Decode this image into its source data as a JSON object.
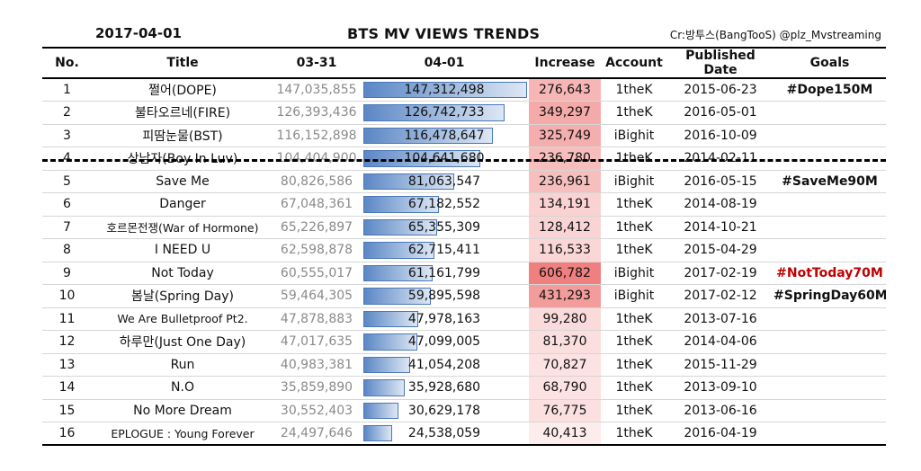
{
  "header": {
    "date": "2017-04-01",
    "title": "BTS MV VIEWS TRENDS",
    "credit": "Cr:방투스(BangTooS) @plz_Mvstreaming"
  },
  "columns": [
    "No.",
    "Title",
    "03-31",
    "04-01",
    "Increase",
    "Account",
    "Published Date",
    "Goals"
  ],
  "colors": {
    "bar": "#5b87c5",
    "bar_border": "#4a78b8",
    "increase_high": "#f08080",
    "increase_low": "#fdeaea",
    "goal_red": "#c00000"
  },
  "chart_data": {
    "type": "table",
    "rows": [
      {
        "no": "1",
        "title": "쩔어(DOPE)",
        "prev": "147,035,855",
        "cur": "147,312,498",
        "inc": "276,643",
        "account": "1theK",
        "date": "2015-06-23",
        "goal": "#Dope150M",
        "cur_value": 147312498,
        "inc_value": 276643
      },
      {
        "no": "2",
        "title": "불타오르네(FIRE)",
        "prev": "126,393,436",
        "cur": "126,742,733",
        "inc": "349,297",
        "account": "1theK",
        "date": "2016-05-01",
        "goal": "",
        "cur_value": 126742733,
        "inc_value": 349297
      },
      {
        "no": "3",
        "title": "피땀눈물(BST)",
        "prev": "116,152,898",
        "cur": "116,478,647",
        "inc": "325,749",
        "account": "iBighit",
        "date": "2016-10-09",
        "goal": "",
        "cur_value": 116478647,
        "inc_value": 325749
      },
      {
        "no": "4",
        "title": "상남자(Boy In Luv)",
        "prev": "104,404,900",
        "cur": "104,641,680",
        "inc": "236,780",
        "account": "1theK",
        "date": "2014-02-11",
        "goal": "",
        "cur_value": 104641680,
        "inc_value": 236780
      },
      {
        "no": "5",
        "title": "Save Me",
        "prev": "80,826,586",
        "cur": "81,063,547",
        "inc": "236,961",
        "account": "iBighit",
        "date": "2016-05-15",
        "goal": "#SaveMe90M",
        "cur_value": 81063547,
        "inc_value": 236961
      },
      {
        "no": "6",
        "title": "Danger",
        "prev": "67,048,361",
        "cur": "67,182,552",
        "inc": "134,191",
        "account": "1theK",
        "date": "2014-08-19",
        "goal": "",
        "cur_value": 67182552,
        "inc_value": 134191
      },
      {
        "no": "7",
        "title": "호르몬전쟁(War of Hormone)",
        "prev": "65,226,897",
        "cur": "65,355,309",
        "inc": "128,412",
        "account": "1theK",
        "date": "2014-10-21",
        "goal": "",
        "cur_value": 65355309,
        "inc_value": 128412
      },
      {
        "no": "8",
        "title": "I NEED U",
        "prev": "62,598,878",
        "cur": "62,715,411",
        "inc": "116,533",
        "account": "1theK",
        "date": "2015-04-29",
        "goal": "",
        "cur_value": 62715411,
        "inc_value": 116533
      },
      {
        "no": "9",
        "title": "Not Today",
        "prev": "60,555,017",
        "cur": "61,161,799",
        "inc": "606,782",
        "account": "iBighit",
        "date": "2017-02-19",
        "goal": "#NotToday70M",
        "goal_red": true,
        "cur_value": 61161799,
        "inc_value": 606782
      },
      {
        "no": "10",
        "title": "봄날(Spring Day)",
        "prev": "59,464,305",
        "cur": "59,895,598",
        "inc": "431,293",
        "account": "iBighit",
        "date": "2017-02-12",
        "goal": "#SpringDay60M",
        "cur_value": 59895598,
        "inc_value": 431293
      },
      {
        "no": "11",
        "title": "We Are Bulletproof Pt2.",
        "prev": "47,878,883",
        "cur": "47,978,163",
        "inc": "99,280",
        "account": "1theK",
        "date": "2013-07-16",
        "goal": "",
        "cur_value": 47978163,
        "inc_value": 99280
      },
      {
        "no": "12",
        "title": "하루만(Just One Day)",
        "prev": "47,017,635",
        "cur": "47,099,005",
        "inc": "81,370",
        "account": "1theK",
        "date": "2014-04-06",
        "goal": "",
        "cur_value": 47099005,
        "inc_value": 81370
      },
      {
        "no": "13",
        "title": "Run",
        "prev": "40,983,381",
        "cur": "41,054,208",
        "inc": "70,827",
        "account": "1theK",
        "date": "2015-11-29",
        "goal": "",
        "cur_value": 41054208,
        "inc_value": 70827
      },
      {
        "no": "14",
        "title": "N.O",
        "prev": "35,859,890",
        "cur": "35,928,680",
        "inc": "68,790",
        "account": "1theK",
        "date": "2013-09-10",
        "goal": "",
        "cur_value": 35928680,
        "inc_value": 68790
      },
      {
        "no": "15",
        "title": "No More Dream",
        "prev": "30,552,403",
        "cur": "30,629,178",
        "inc": "76,775",
        "account": "1theK",
        "date": "2013-06-16",
        "goal": "",
        "cur_value": 30629178,
        "inc_value": 76775
      },
      {
        "no": "16",
        "title": "EPLOGUE : Young Forever",
        "prev": "24,497,646",
        "cur": "24,538,059",
        "inc": "40,413",
        "account": "1theK",
        "date": "2016-04-19",
        "goal": "",
        "cur_value": 24538059,
        "inc_value": 40413
      }
    ]
  }
}
